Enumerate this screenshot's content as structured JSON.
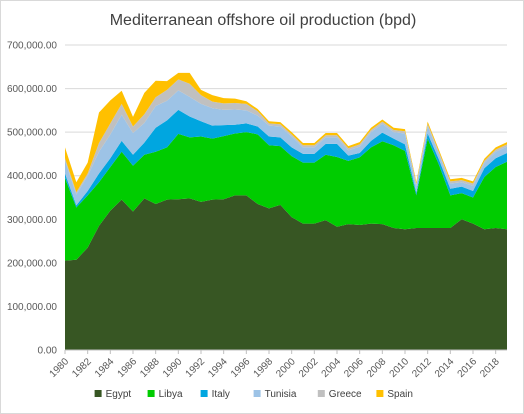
{
  "chart_data": {
    "type": "area",
    "stacked": true,
    "title": "Mediterranean offshore oil production (bpd)",
    "xlabel": "",
    "ylabel": "",
    "ylim": [
      0,
      700000
    ],
    "y_ticks": [
      "0.00",
      "100,000.00",
      "200,000.00",
      "300,000.00",
      "400,000.00",
      "500,000.00",
      "600,000.00",
      "700,000.00"
    ],
    "x_tick_labels": [
      "1980",
      "1982",
      "1984",
      "1986",
      "1988",
      "1990",
      "1992",
      "1994",
      "1996",
      "1998",
      "2000",
      "2002",
      "2004",
      "2006",
      "2008",
      "2010",
      "2012",
      "2014",
      "2016",
      "2018"
    ],
    "x": [
      1980,
      1981,
      1982,
      1983,
      1984,
      1985,
      1986,
      1987,
      1988,
      1989,
      1990,
      1991,
      1992,
      1993,
      1994,
      1995,
      1996,
      1997,
      1998,
      1999,
      2000,
      2001,
      2002,
      2003,
      2004,
      2005,
      2006,
      2007,
      2008,
      2009,
      2010,
      2011,
      2012,
      2013,
      2014,
      2015,
      2016,
      2017,
      2018,
      2019
    ],
    "grid": true,
    "legend_position": "bottom",
    "series": [
      {
        "name": "Egypt",
        "color": "#375623",
        "values": [
          205000,
          207000,
          235000,
          285000,
          320000,
          345000,
          318000,
          348000,
          335000,
          345000,
          346000,
          348000,
          340000,
          345000,
          346000,
          355000,
          355000,
          335000,
          325000,
          333000,
          305000,
          290000,
          290000,
          298000,
          283000,
          289000,
          287000,
          290000,
          289000,
          280000,
          277000,
          280000,
          280000,
          280000,
          280000,
          300000,
          290000,
          277000,
          280000,
          277000
        ]
      },
      {
        "name": "Libya",
        "color": "#00cc00",
        "values": [
          190000,
          120000,
          120000,
          100000,
          100000,
          110000,
          105000,
          100000,
          120000,
          120000,
          150000,
          140000,
          150000,
          140000,
          145000,
          142000,
          145000,
          160000,
          145000,
          135000,
          140000,
          140000,
          140000,
          150000,
          160000,
          145000,
          155000,
          175000,
          190000,
          190000,
          180000,
          75000,
          205000,
          145000,
          75000,
          60000,
          60000,
          120000,
          140000,
          155000
        ]
      },
      {
        "name": "Italy",
        "color": "#00a6e0",
        "values": [
          10000,
          5000,
          10000,
          20000,
          20000,
          25000,
          25000,
          28000,
          55000,
          62000,
          55000,
          48000,
          35000,
          30000,
          25000,
          20000,
          20000,
          18000,
          20000,
          20000,
          20000,
          20000,
          20000,
          25000,
          30000,
          12000,
          10000,
          15000,
          20000,
          15000,
          15000,
          6000,
          12000,
          12000,
          15000,
          15000,
          15000,
          20000,
          20000,
          20000
        ]
      },
      {
        "name": "Tunisia",
        "color": "#9dc3e6",
        "values": [
          30000,
          25000,
          35000,
          50000,
          55000,
          60000,
          50000,
          45000,
          50000,
          45000,
          45000,
          45000,
          40000,
          40000,
          35000,
          35000,
          30000,
          25000,
          25000,
          25000,
          25000,
          15000,
          15000,
          15000,
          15000,
          12000,
          15000,
          20000,
          20000,
          15000,
          25000,
          15000,
          17000,
          12000,
          12000,
          10000,
          12000,
          12000,
          15000,
          15000
        ]
      },
      {
        "name": "Greece",
        "color": "#c0c0c0",
        "values": [
          5000,
          5000,
          5000,
          20000,
          25000,
          25000,
          15000,
          20000,
          20000,
          25000,
          25000,
          30000,
          20000,
          15000,
          15000,
          15000,
          15000,
          10000,
          5000,
          5000,
          5000,
          5000,
          5000,
          5000,
          5000,
          5000,
          5000,
          5000,
          5000,
          5000,
          5000,
          5000,
          5000,
          5000,
          5000,
          5000,
          5000,
          5000,
          5000,
          5000
        ]
      },
      {
        "name": "Spain",
        "color": "#ffc000",
        "values": [
          25000,
          23000,
          25000,
          70000,
          53000,
          30000,
          22000,
          49000,
          38000,
          20000,
          15000,
          25000,
          12000,
          15000,
          12000,
          10000,
          6000,
          5000,
          5000,
          5000,
          5000,
          5000,
          5000,
          5000,
          5000,
          5000,
          5000,
          5000,
          5000,
          5000,
          5000,
          5000,
          5000,
          5000,
          5000,
          5000,
          5000,
          5000,
          5000,
          5000
        ]
      }
    ]
  }
}
